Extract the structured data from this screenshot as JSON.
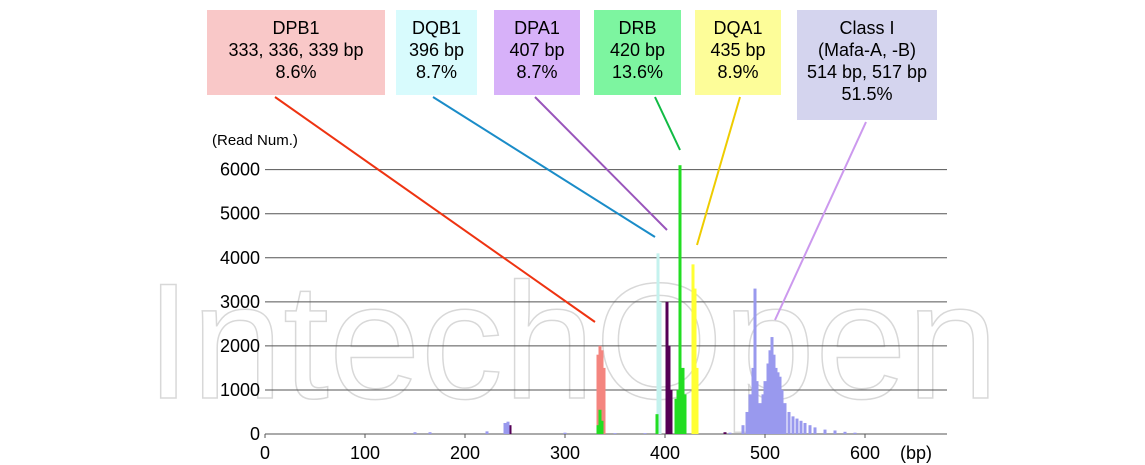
{
  "watermark": "IntechOpen",
  "chart_data": {
    "type": "bar",
    "y_label": "(Read Num.)",
    "x_label": "(bp)",
    "xlim": [
      0,
      682
    ],
    "ylim": [
      0,
      6400
    ],
    "xticks": [
      0,
      100,
      200,
      300,
      400,
      500,
      600
    ],
    "yticks": [
      0,
      1000,
      2000,
      3000,
      4000,
      5000,
      6000
    ],
    "grid": true,
    "series": [
      {
        "name": "DPB1",
        "label_lines": [
          "333, 336, 339 bp",
          "8.6%"
        ],
        "box_color": "#f9c8c8",
        "line_color": "#ee3311",
        "color": "#f4857f",
        "x": [
          333,
          335,
          337,
          339
        ],
        "values": [
          1800,
          2000,
          1900,
          1500
        ]
      },
      {
        "name": "DQB1",
        "label_lines": [
          "396 bp",
          "8.7%"
        ],
        "box_color": "#d8fbfd",
        "line_color": "#1a8cc8",
        "color": "#c4f2ee",
        "x": [
          393,
          395
        ],
        "values": [
          4100,
          3000
        ]
      },
      {
        "name": "DPA1",
        "label_lines": [
          "407 bp",
          "8.7%"
        ],
        "box_color": "#d7b1f9",
        "line_color": "#9955bb",
        "color": "#550055",
        "x": [
          245,
          402,
          404,
          406,
          460
        ],
        "values": [
          200,
          3000,
          2000,
          1000,
          40
        ]
      },
      {
        "name": "DRB",
        "label_lines": [
          "420 bp",
          "13.6%"
        ],
        "box_color": "#7df5a0",
        "line_color": "#11bb44",
        "color": "#22dd22",
        "x": [
          333,
          335,
          337,
          392,
          411,
          413,
          415,
          418,
          420
        ],
        "values": [
          200,
          550,
          300,
          450,
          800,
          1000,
          6100,
          1500,
          900
        ]
      },
      {
        "name": "DQA1",
        "label_lines": [
          "435 bp",
          "8.9%"
        ],
        "box_color": "#fdfd99",
        "line_color": "#eecc00",
        "color": "#ffff33",
        "x": [
          428,
          430,
          432
        ],
        "values": [
          3850,
          3300,
          1500
        ]
      },
      {
        "name": "Class I",
        "label_lines": [
          "(Mafa-A, -B)",
          "514 bp, 517 bp",
          "51.5%"
        ],
        "box_color": "#d4d4ee",
        "line_color": "#cc99ee",
        "color": "#9999ee",
        "x": [
          150,
          165,
          222,
          240,
          243,
          300,
          350,
          380,
          465,
          478,
          482,
          485,
          488,
          490,
          492,
          495,
          498,
          500,
          503,
          505,
          507,
          509,
          511,
          513,
          515,
          517,
          520,
          524,
          528,
          532,
          536,
          540,
          545,
          550,
          560,
          570,
          580,
          590
        ],
        "values": [
          40,
          40,
          60,
          250,
          280,
          30,
          20,
          20,
          30,
          200,
          500,
          900,
          1500,
          3300,
          1200,
          700,
          900,
          1200,
          1600,
          1900,
          2200,
          1800,
          1500,
          1400,
          1300,
          1000,
          700,
          500,
          400,
          350,
          300,
          250,
          200,
          150,
          100,
          80,
          50,
          30
        ]
      }
    ]
  }
}
